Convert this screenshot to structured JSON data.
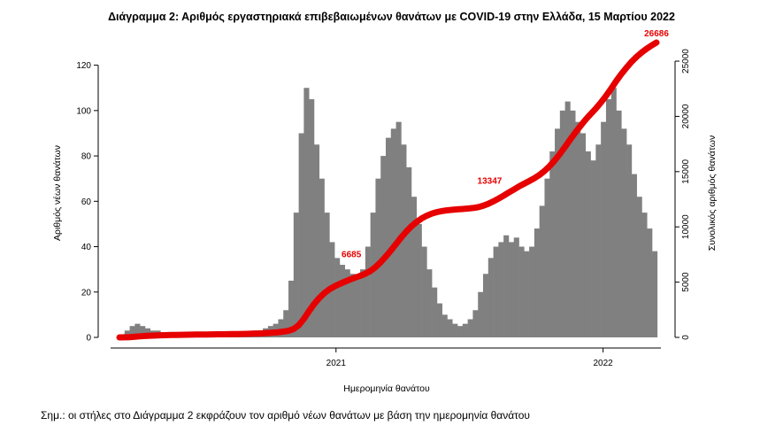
{
  "title": "Διάγραμμα 2: Αριθμός εργαστηριακά επιβεβαιωμένων θανάτων με COVID-19 στην Ελλάδα, 15 Μαρτίου 2022",
  "note": "Σημ.: οι στήλες στο Διάγραμμα 2 εκφράζουν τον αριθμό νέων θανάτων με βάση την ημερομηνία θανάτου",
  "colors": {
    "bars": "#808080",
    "cumulative": "#e60000",
    "axis": "#000000"
  },
  "chart_data": {
    "type": "bar",
    "xlabel": "Ημερομηνία θανάτου",
    "ylabel_left": "Αριθμός νέων θανάτων",
    "ylabel_right": "Συνολικός αριθμός θανάτων",
    "x_range": [
      "2020-03-11",
      "2022-03-15"
    ],
    "x_ticks": [
      {
        "date": "2021-01-01",
        "label": "2021"
      },
      {
        "date": "2022-01-01",
        "label": "2022"
      }
    ],
    "y_left_range": [
      0,
      130
    ],
    "y_left_ticks": [
      0,
      20,
      40,
      60,
      80,
      100,
      120
    ],
    "y_right_range": [
      0,
      26686
    ],
    "y_right_ticks": [
      0,
      5000,
      10000,
      15000,
      20000,
      25000
    ],
    "grid": false,
    "daily_deaths_weekly_avg": {
      "week_start": [
        "2020-03-11",
        "2020-03-18",
        "2020-03-25",
        "2020-04-01",
        "2020-04-08",
        "2020-04-15",
        "2020-04-22",
        "2020-04-29",
        "2020-05-06",
        "2020-05-13",
        "2020-05-20",
        "2020-05-27",
        "2020-06-03",
        "2020-06-10",
        "2020-06-17",
        "2020-06-24",
        "2020-07-01",
        "2020-07-08",
        "2020-07-15",
        "2020-07-22",
        "2020-07-29",
        "2020-08-05",
        "2020-08-12",
        "2020-08-19",
        "2020-08-26",
        "2020-09-02",
        "2020-09-09",
        "2020-09-16",
        "2020-09-23",
        "2020-09-30",
        "2020-10-07",
        "2020-10-14",
        "2020-10-21",
        "2020-10-28",
        "2020-11-04",
        "2020-11-11",
        "2020-11-18",
        "2020-11-25",
        "2020-12-02",
        "2020-12-09",
        "2020-12-16",
        "2020-12-23",
        "2020-12-30",
        "2021-01-06",
        "2021-01-13",
        "2021-01-20",
        "2021-01-27",
        "2021-02-03",
        "2021-02-10",
        "2021-02-17",
        "2021-02-24",
        "2021-03-03",
        "2021-03-10",
        "2021-03-17",
        "2021-03-24",
        "2021-03-31",
        "2021-04-07",
        "2021-04-14",
        "2021-04-21",
        "2021-04-28",
        "2021-05-05",
        "2021-05-12",
        "2021-05-19",
        "2021-05-26",
        "2021-06-02",
        "2021-06-09",
        "2021-06-16",
        "2021-06-23",
        "2021-06-30",
        "2021-07-07",
        "2021-07-14",
        "2021-07-21",
        "2021-07-28",
        "2021-08-04",
        "2021-08-11",
        "2021-08-18",
        "2021-08-25",
        "2021-09-01",
        "2021-09-08",
        "2021-09-15",
        "2021-09-22",
        "2021-09-29",
        "2021-10-06",
        "2021-10-13",
        "2021-10-20",
        "2021-10-27",
        "2021-11-03",
        "2021-11-10",
        "2021-11-17",
        "2021-11-24",
        "2021-12-01",
        "2021-12-08",
        "2021-12-15",
        "2021-12-22",
        "2021-12-29",
        "2022-01-05",
        "2022-01-12",
        "2022-01-19",
        "2022-01-26",
        "2022-02-02",
        "2022-02-09",
        "2022-02-16",
        "2022-02-23",
        "2022-03-02",
        "2022-03-09"
      ],
      "values": [
        1,
        3,
        5,
        6,
        5,
        4,
        3,
        3,
        2,
        2,
        2,
        1,
        1,
        1,
        1,
        1,
        1,
        1,
        1,
        1,
        1,
        1,
        1,
        1,
        2,
        2,
        3,
        3,
        4,
        5,
        6,
        8,
        12,
        25,
        55,
        90,
        110,
        105,
        85,
        70,
        55,
        42,
        35,
        32,
        30,
        28,
        26,
        30,
        40,
        55,
        70,
        80,
        88,
        92,
        95,
        85,
        75,
        62,
        50,
        40,
        30,
        22,
        15,
        10,
        8,
        6,
        5,
        6,
        8,
        12,
        20,
        28,
        35,
        40,
        42,
        45,
        42,
        44,
        40,
        38,
        40,
        48,
        58,
        70,
        82,
        92,
        100,
        104,
        100,
        95,
        90,
        82,
        78,
        85,
        95,
        105,
        110,
        100,
        92,
        85,
        72,
        62,
        55,
        48,
        38
      ]
    },
    "cumulative_deaths": {
      "labels": [
        {
          "date": "2021-01-22",
          "value": 6685
        },
        {
          "date": "2021-07-30",
          "value": 13347
        },
        {
          "date": "2022-03-15",
          "value": 26686
        }
      ]
    }
  }
}
